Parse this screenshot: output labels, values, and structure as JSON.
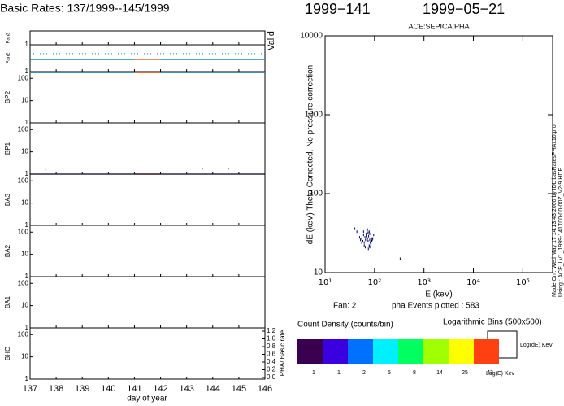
{
  "chart_data": [
    {
      "type": "stacked-panels",
      "title": "Basic Rates: 137/1999--145/1999",
      "x_label": "day of year",
      "xlim": [
        137,
        146
      ],
      "xticks": [
        137,
        138,
        139,
        140,
        141,
        142,
        143,
        144,
        145,
        146
      ],
      "valid_label": "Valid",
      "y2_label": "PHA/ Basic rate",
      "y2lim": [
        0,
        1.2
      ],
      "y2ticks": [
        {
          "value": 1.2,
          "label": "1.2"
        },
        {
          "value": 1.0,
          "label": "1.0"
        },
        {
          "value": 0.8,
          "label": "0.8"
        },
        {
          "value": 0.6,
          "label": "0.6"
        },
        {
          "value": 0.4,
          "label": "0.4"
        },
        {
          "value": 0.2,
          "label": "0.2"
        },
        {
          "value": 0.0,
          "label": "0.0"
        }
      ],
      "panels": [
        {
          "name": "Fan3",
          "ylim": [
            1,
            2
          ],
          "yticks": [
            1
          ],
          "log": false,
          "lines": []
        },
        {
          "name": "Fan2",
          "ylim": [
            1,
            2
          ],
          "yticks": [
            1
          ],
          "log": false,
          "lines": [
            {
              "value": 1.67,
              "color": "#3a9ad0",
              "dash": true,
              "xrange": [
                137,
                146
              ]
            },
            {
              "value": 1.45,
              "color": "#2080b0",
              "dash": false,
              "xrange": [
                137,
                146
              ]
            },
            {
              "value": 1.45,
              "color": "#ff8040",
              "dash": false,
              "xrange": [
                141,
                142
              ]
            }
          ]
        },
        {
          "name": "BP2",
          "ylim": [
            1,
            200
          ],
          "yticks": [
            1,
            10,
            100
          ],
          "log": true,
          "lines": [
            {
              "value": 180,
              "color": "#2080b0",
              "dash": false,
              "xrange": [
                137,
                146
              ]
            },
            {
              "value": 180,
              "color": "#ff6020",
              "dash": false,
              "xrange": [
                141,
                142
              ]
            }
          ]
        },
        {
          "name": "BP1",
          "ylim": [
            1,
            200
          ],
          "yticks": [
            1,
            10,
            100
          ],
          "log": true,
          "lines": [
            {
              "value": 1,
              "color": "#000090",
              "dash": false,
              "xrange": [
                137,
                146
              ]
            },
            {
              "value": 1,
              "color": "#e03010",
              "dash": false,
              "xrange": [
                141,
                142
              ]
            }
          ],
          "points": {
            "x": [
              137.6,
              143.6,
              144.6
            ],
            "y": [
              1.6,
              1.7,
              1.7
            ]
          }
        },
        {
          "name": "BA3",
          "ylim": [
            1,
            200
          ],
          "yticks": [
            1,
            10,
            100
          ],
          "log": true,
          "lines": []
        },
        {
          "name": "BA2",
          "ylim": [
            1,
            200
          ],
          "yticks": [
            1,
            10,
            100
          ],
          "log": true,
          "lines": []
        },
        {
          "name": "BA1",
          "ylim": [
            1,
            200
          ],
          "yticks": [
            1,
            10,
            100
          ],
          "log": true,
          "lines": []
        },
        {
          "name": "BHO",
          "ylim": [
            1,
            200
          ],
          "yticks": [
            1,
            10,
            100
          ],
          "log": true,
          "lines": []
        }
      ]
    },
    {
      "type": "scatter",
      "date_doy": "1999−141",
      "date": "1999−05−21",
      "title": "ACE:SEPICA:PHA",
      "x_label": "E (keV)",
      "y_label": "dE (keV) Theta Corrected, No pressure correction",
      "xlog": true,
      "ylog": true,
      "xlim": [
        10,
        400000
      ],
      "ylim": [
        10,
        10000
      ],
      "xticks": [
        {
          "value": 10,
          "label": "10¹"
        },
        {
          "value": 100,
          "label": "10²"
        },
        {
          "value": 1000,
          "label": "10³"
        },
        {
          "value": 10000,
          "label": "10⁴"
        },
        {
          "value": 100000,
          "label": "10⁵"
        }
      ],
      "yticks": [
        10,
        100,
        1000,
        10000
      ],
      "made_on": "Made On : Wed May 17 14:13:43 2000   by IDL basRatesPHAx10.pro",
      "using": "Using : ACE_LV1_1999-141T00-00-00Z_V2-9.HDF",
      "fan_label": "Fan:  2",
      "events_label": "pha Events plotted : 583",
      "color": "#000060",
      "x": [
        40,
        44,
        50,
        52,
        55,
        58,
        60,
        62,
        64,
        66,
        68,
        70,
        72,
        74,
        76,
        78,
        80,
        82,
        85,
        88,
        92,
        96,
        60,
        65,
        70,
        75,
        80,
        85,
        90,
        55,
        62,
        68,
        74,
        80,
        86,
        72,
        78,
        84,
        330
      ],
      "y": [
        36,
        33,
        28,
        26,
        27,
        25,
        30,
        24,
        28,
        26,
        31,
        23,
        27,
        25,
        29,
        22,
        26,
        24,
        28,
        25,
        27,
        30,
        33,
        21,
        34,
        20,
        31,
        23,
        26,
        24,
        22,
        29,
        32,
        21,
        27,
        35,
        33,
        22,
        15
      ]
    },
    {
      "type": "colorbar",
      "title": "Count Density (counts/bin)",
      "bins_label": "Logarithmic Bins (500x500)",
      "y_key": "Log(dE) KeV",
      "x_key": "Log(E) Kev",
      "colors": [
        "#3a0050",
        "#3a00e0",
        "#0070ff",
        "#00f0ff",
        "#00ff60",
        "#a0ff00",
        "#ffff00",
        "#ff4010"
      ],
      "values": [
        1,
        1,
        2,
        5,
        8,
        14,
        25,
        43
      ]
    }
  ]
}
